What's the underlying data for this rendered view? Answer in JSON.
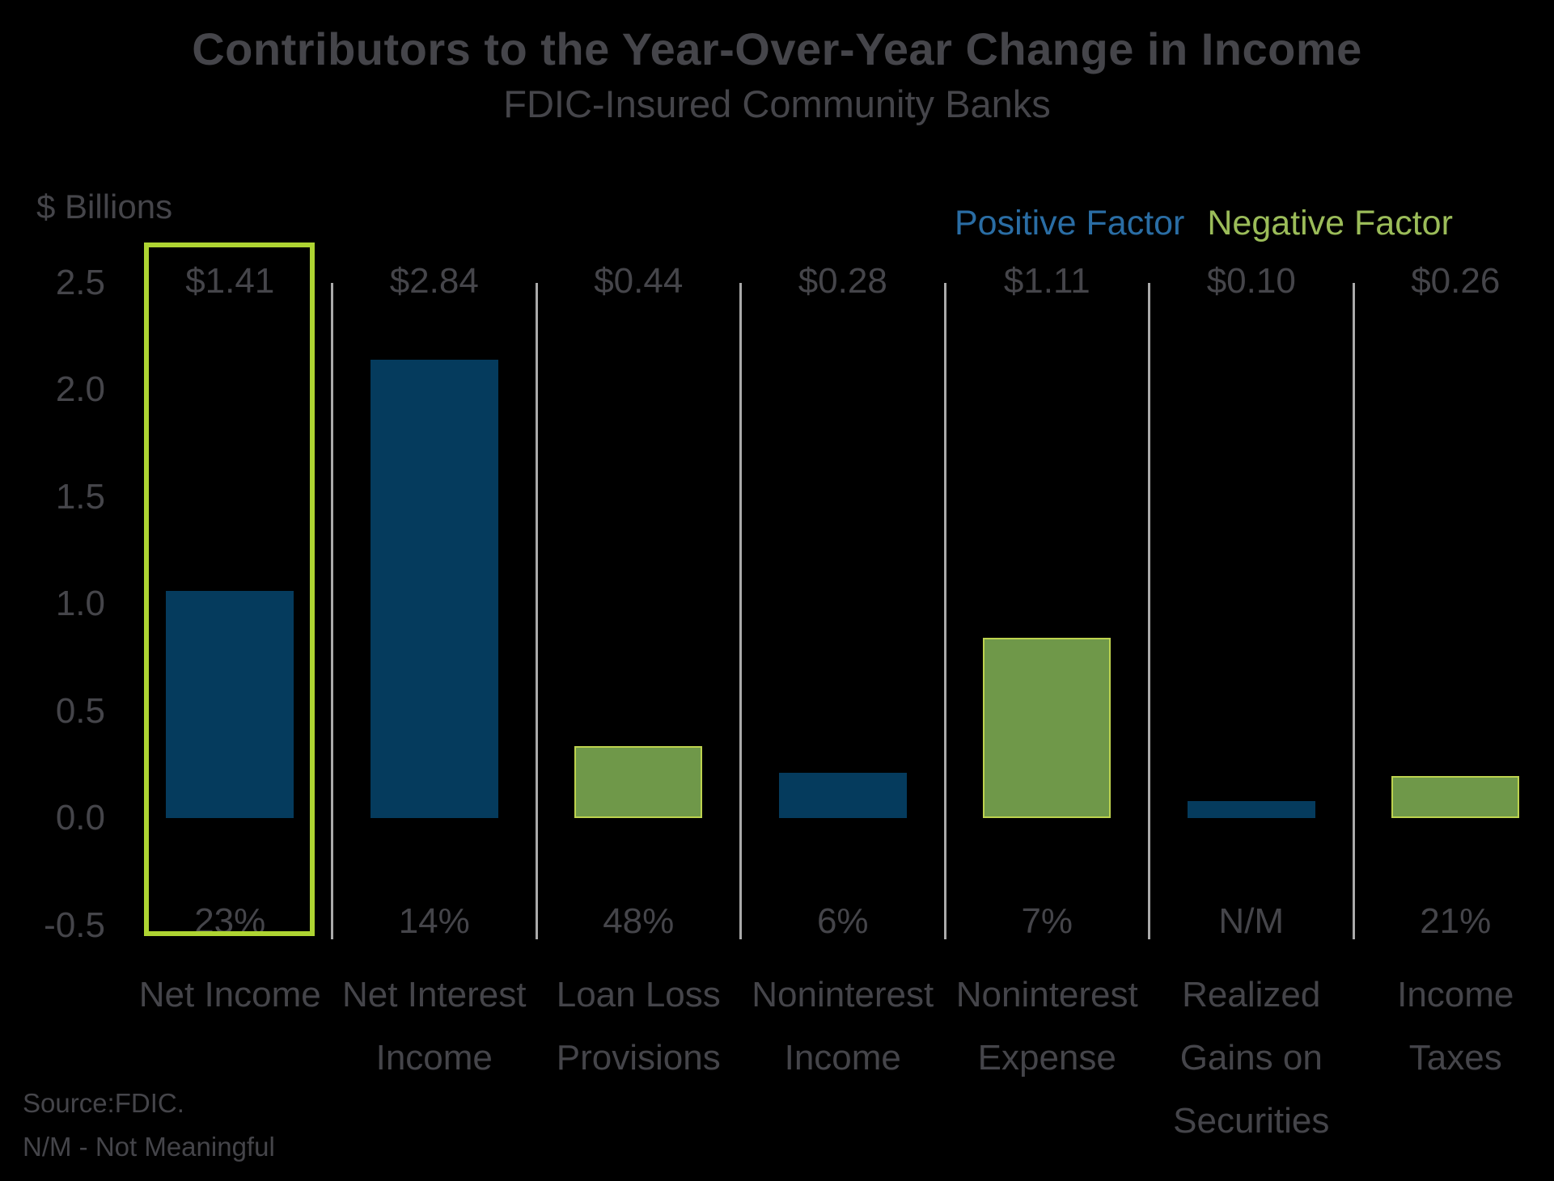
{
  "title": "Contributors to the Year-Over-Year Change in Income",
  "subtitle": "FDIC-Insured Community Banks",
  "y_axis": {
    "label": "$ Billions",
    "ticks": [
      "2.5",
      "2.0",
      "1.5",
      "1.0",
      "0.5",
      "0.0",
      "-0.5"
    ]
  },
  "legend": {
    "positive_label": "Positive Factor",
    "negative_label": "Negative Factor"
  },
  "footnotes": {
    "source": "Source:FDIC.",
    "nm_note": "N/M - Not Meaningful"
  },
  "colors": {
    "background": "#000000",
    "text_gray": "#45454a",
    "positive_bar": "#053b5d",
    "negative_bar": "#6f9849",
    "negative_bar_edge": "#bdd24e",
    "legend_positive_text": "#2a6da4",
    "legend_negative_text": "#9bbc59",
    "highlight_box": "#aed432",
    "separator": "#aaaaaa"
  },
  "chart_data": {
    "type": "bar",
    "title": "Contributors to the Year-Over-Year Change in Income",
    "subtitle": "FDIC-Insured Community Banks",
    "ylabel": "$ Billions",
    "ylim": [
      -0.5,
      2.5
    ],
    "tick_step": 0.5,
    "grid": false,
    "legend_position": "top-right",
    "legend_entries": [
      "Positive Factor",
      "Negative Factor"
    ],
    "categories": [
      "Net Income",
      "Net Interest Income",
      "Loan Loss Provisions",
      "Noninterest Income",
      "Noninterest Expense",
      "Realized Gains on Securities",
      "Income Taxes"
    ],
    "value_labels": [
      "$1.41",
      "$2.84",
      "$0.44",
      "$0.28",
      "$1.11",
      "$0.10",
      "$0.26"
    ],
    "values_billions": [
      1.41,
      2.84,
      0.44,
      0.28,
      1.11,
      0.1,
      0.26
    ],
    "percent_labels": [
      "23%",
      "14%",
      "48%",
      "6%",
      "7%",
      "N/M",
      "21%"
    ],
    "factor": [
      "positive",
      "positive",
      "negative",
      "positive",
      "negative",
      "positive",
      "negative"
    ],
    "displayed_bar_heights_billions": [
      1.06,
      2.14,
      0.335,
      0.21,
      0.84,
      0.08,
      0.195
    ],
    "highlighted_category": "Net Income"
  }
}
